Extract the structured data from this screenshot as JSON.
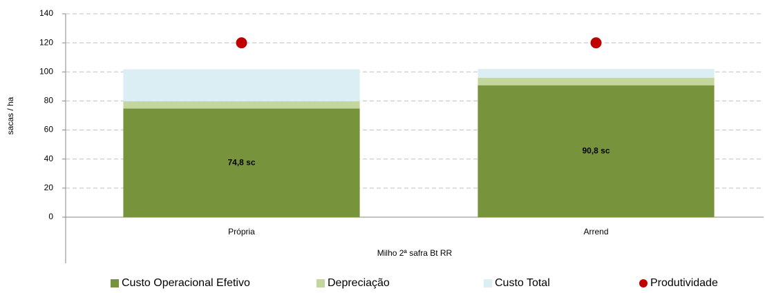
{
  "chart_data": {
    "type": "bar",
    "stacked": true,
    "categories": [
      "Própria",
      "Arrend"
    ],
    "x_label": "Milho 2ª safra Bt RR",
    "y_label": "sacas / ha",
    "ylim": [
      0,
      140
    ],
    "yticks": [
      0,
      20,
      40,
      60,
      80,
      100,
      120,
      140
    ],
    "grid": true,
    "series": [
      {
        "name": "Custo Operacional Efetivo",
        "color": "#77933c",
        "values": [
          74.8,
          90.8
        ],
        "value_labels": [
          "74,8 sc",
          "90,8 sc"
        ]
      },
      {
        "name": "Depreciação",
        "color": "#c3d69b",
        "values": [
          5,
          5.2
        ]
      },
      {
        "name": "Custo Total",
        "color": "#dbeef4",
        "values": [
          22,
          6
        ]
      },
      {
        "name": "Produtividade",
        "color": "#c00000",
        "type": "scatter",
        "values": [
          120,
          120
        ]
      }
    ],
    "legend": "bottom"
  }
}
